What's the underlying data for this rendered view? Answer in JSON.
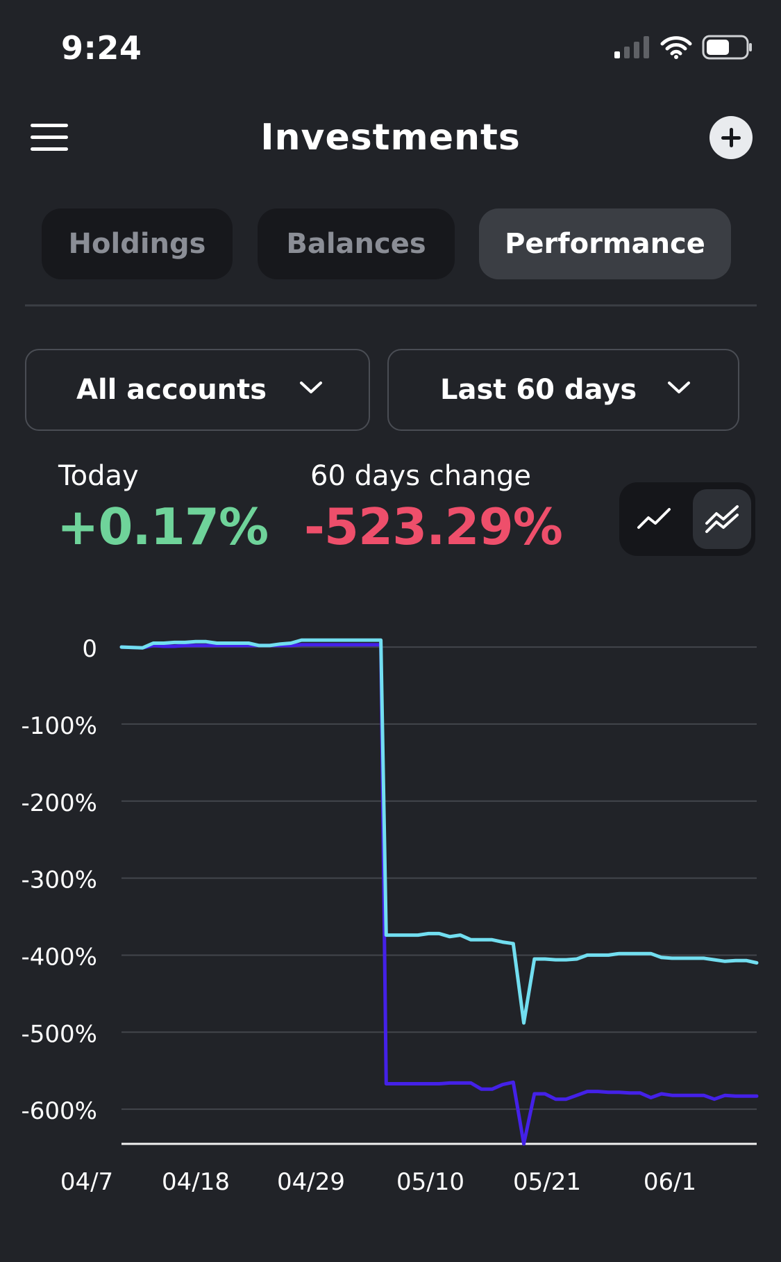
{
  "status_bar": {
    "time": "9:24",
    "icons": [
      "signal-icon",
      "wifi-icon",
      "battery-icon"
    ]
  },
  "header": {
    "title": "Investments",
    "menu_icon": "menu-icon",
    "add_icon": "plus-icon"
  },
  "tabs": [
    {
      "label": "Holdings",
      "active": false
    },
    {
      "label": "Balances",
      "active": false
    },
    {
      "label": "Performance",
      "active": true
    }
  ],
  "filters": {
    "account": {
      "value": "All accounts"
    },
    "period": {
      "value": "Last 60 days"
    }
  },
  "stats": {
    "today": {
      "label": "Today",
      "value": "+0.17%"
    },
    "period_change": {
      "label": "60 days change",
      "value": "-523.29%"
    }
  },
  "view_toggle": {
    "options": [
      "single-line-chart-icon",
      "multi-line-chart-icon"
    ],
    "active": "multi-line-chart-icon"
  },
  "colors": {
    "background": "#212328",
    "positive": "#6fd39a",
    "negative": "#ee4f6b",
    "series_light": "#72def0",
    "series_dark": "#4421e8"
  },
  "chart_data": {
    "type": "line",
    "x_tick_labels": [
      "04/7",
      "04/18",
      "04/29",
      "05/10",
      "05/21",
      "06/1"
    ],
    "y_tick_labels": [
      "0",
      "-100%",
      "-200%",
      "-300%",
      "-400%",
      "-500%",
      "-600%"
    ],
    "y_ticks": [
      0,
      -100,
      -200,
      -300,
      -400,
      -500,
      -600
    ],
    "ylim": [
      -645,
      10
    ],
    "xlim": [
      0,
      60
    ],
    "grid": true,
    "series": [
      {
        "color": "#72def0",
        "x": [
          0,
          2,
          3,
          4,
          5,
          6,
          7,
          8,
          9,
          10,
          11,
          12,
          13,
          14,
          15,
          16,
          17,
          18,
          19,
          20,
          21,
          22,
          23,
          24,
          24.5,
          25,
          26,
          27,
          28,
          29,
          30,
          31,
          32,
          33,
          34,
          35,
          36,
          37,
          38,
          39,
          40,
          41,
          42,
          43,
          44,
          45,
          46,
          47,
          48,
          49,
          50,
          51,
          52,
          53,
          54,
          55,
          56,
          57,
          58,
          59,
          60
        ],
        "y": [
          0,
          -1,
          5,
          5,
          6,
          6,
          7,
          7,
          5,
          5,
          5,
          5,
          2,
          2,
          4,
          5,
          9,
          9,
          9,
          9,
          9,
          9,
          9,
          9,
          9,
          -374,
          -374,
          -374,
          -374,
          -372,
          -372,
          -376,
          -374,
          -380,
          -380,
          -380,
          -383,
          -385,
          -488,
          -405,
          -405,
          -406,
          -406,
          -405,
          -400,
          -400,
          -400,
          -398,
          -398,
          -398,
          -398,
          -403,
          -404,
          -404,
          -404,
          -404,
          -406,
          -408,
          -407,
          -407,
          -410
        ]
      },
      {
        "color": "#4421e8",
        "x": [
          0,
          2,
          3,
          4,
          5,
          6,
          7,
          8,
          9,
          10,
          11,
          12,
          13,
          14,
          15,
          16,
          17,
          18,
          19,
          20,
          21,
          22,
          23,
          24,
          24.5,
          25,
          26,
          27,
          28,
          29,
          30,
          31,
          32,
          33,
          34,
          35,
          36,
          37,
          38,
          39,
          40,
          41,
          42,
          43,
          44,
          45,
          46,
          47,
          48,
          49,
          50,
          51,
          52,
          53,
          54,
          55,
          56,
          57,
          58,
          59,
          60
        ],
        "y": [
          0,
          -1,
          2,
          1,
          1,
          2,
          2,
          2,
          2,
          2,
          2,
          2,
          2,
          2,
          2,
          2,
          3,
          3,
          3,
          3,
          3,
          3,
          3,
          3,
          3,
          -567,
          -567,
          -567,
          -567,
          -567,
          -567,
          -566,
          -566,
          -566,
          -574,
          -574,
          -568,
          -565,
          -645,
          -580,
          -580,
          -587,
          -587,
          -582,
          -577,
          -577,
          -578,
          -578,
          -579,
          -579,
          -585,
          -580,
          -582,
          -582,
          -582,
          -582,
          -587,
          -582,
          -583,
          -583,
          -583
        ]
      }
    ]
  }
}
